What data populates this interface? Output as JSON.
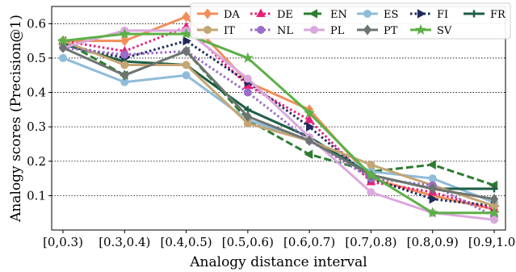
{
  "chart_data": {
    "type": "line",
    "xlabel": "Analogy distance interval",
    "ylabel": "Analogy scores (Precision@1)",
    "categories": [
      "[0,0.3)",
      "[0.3,0.4)",
      "[0.4,0.5)",
      "[0.5,0.6)",
      "[0.6,0.7)",
      "[0.7,0.8)",
      "[0.8,0.9)",
      "[0.9,1.0]"
    ],
    "ylim": [
      0.0,
      0.65
    ],
    "yticks": [
      "0.1",
      "0.2",
      "0.3",
      "0.4",
      "0.5",
      "0.6"
    ],
    "grid": "horizontal dotted",
    "legend_position": "top-right",
    "series": [
      {
        "name": "DA",
        "color": "#f28e5a",
        "dash": "solid",
        "marker": "diamond",
        "values": [
          0.55,
          0.55,
          0.62,
          0.43,
          0.35,
          0.15,
          0.1,
          0.06
        ]
      },
      {
        "name": "DE",
        "color": "#e8207a",
        "dash": "dotted",
        "marker": "triangle-up",
        "values": [
          0.55,
          0.52,
          0.59,
          0.42,
          0.32,
          0.14,
          0.11,
          0.06
        ]
      },
      {
        "name": "EN",
        "color": "#2e7d32",
        "dash": "dashed",
        "marker": "triangle-left",
        "values": [
          0.55,
          0.45,
          0.52,
          0.32,
          0.22,
          0.17,
          0.19,
          0.13
        ]
      },
      {
        "name": "ES",
        "color": "#8fbcd9",
        "dash": "solid",
        "marker": "circle",
        "values": [
          0.5,
          0.43,
          0.45,
          0.32,
          0.26,
          0.17,
          0.15,
          0.08
        ]
      },
      {
        "name": "FI",
        "color": "#1f2a5c",
        "dash": "dotted",
        "marker": "triangle-right",
        "values": [
          0.54,
          0.5,
          0.55,
          0.43,
          0.3,
          0.15,
          0.09,
          0.07
        ]
      },
      {
        "name": "FR",
        "color": "#1d5e45",
        "dash": "solid",
        "marker": "plus",
        "values": [
          0.54,
          0.49,
          0.48,
          0.35,
          0.27,
          0.16,
          0.12,
          0.12
        ]
      },
      {
        "name": "IT",
        "color": "#c4a574",
        "dash": "solid",
        "marker": "circle",
        "values": [
          0.55,
          0.48,
          0.48,
          0.31,
          0.26,
          0.19,
          0.13,
          0.07
        ]
      },
      {
        "name": "NL",
        "color": "#9b6cc8",
        "dash": "dotted",
        "marker": "circle",
        "values": [
          0.53,
          0.51,
          0.52,
          0.4,
          0.26,
          0.15,
          0.13,
          0.04
        ]
      },
      {
        "name": "PL",
        "color": "#dba8dd",
        "dash": "solid",
        "marker": "circle",
        "values": [
          0.53,
          0.58,
          0.58,
          0.44,
          0.27,
          0.11,
          0.05,
          0.03
        ]
      },
      {
        "name": "PT",
        "color": "#6e7570",
        "dash": "solid",
        "marker": "diamond",
        "values": [
          0.53,
          0.45,
          0.52,
          0.33,
          0.26,
          0.16,
          0.12,
          0.09
        ]
      },
      {
        "name": "SV",
        "color": "#5cb046",
        "dash": "solid",
        "marker": "star",
        "values": [
          0.55,
          0.57,
          0.57,
          0.5,
          0.34,
          0.16,
          0.05,
          0.05
        ]
      }
    ]
  }
}
